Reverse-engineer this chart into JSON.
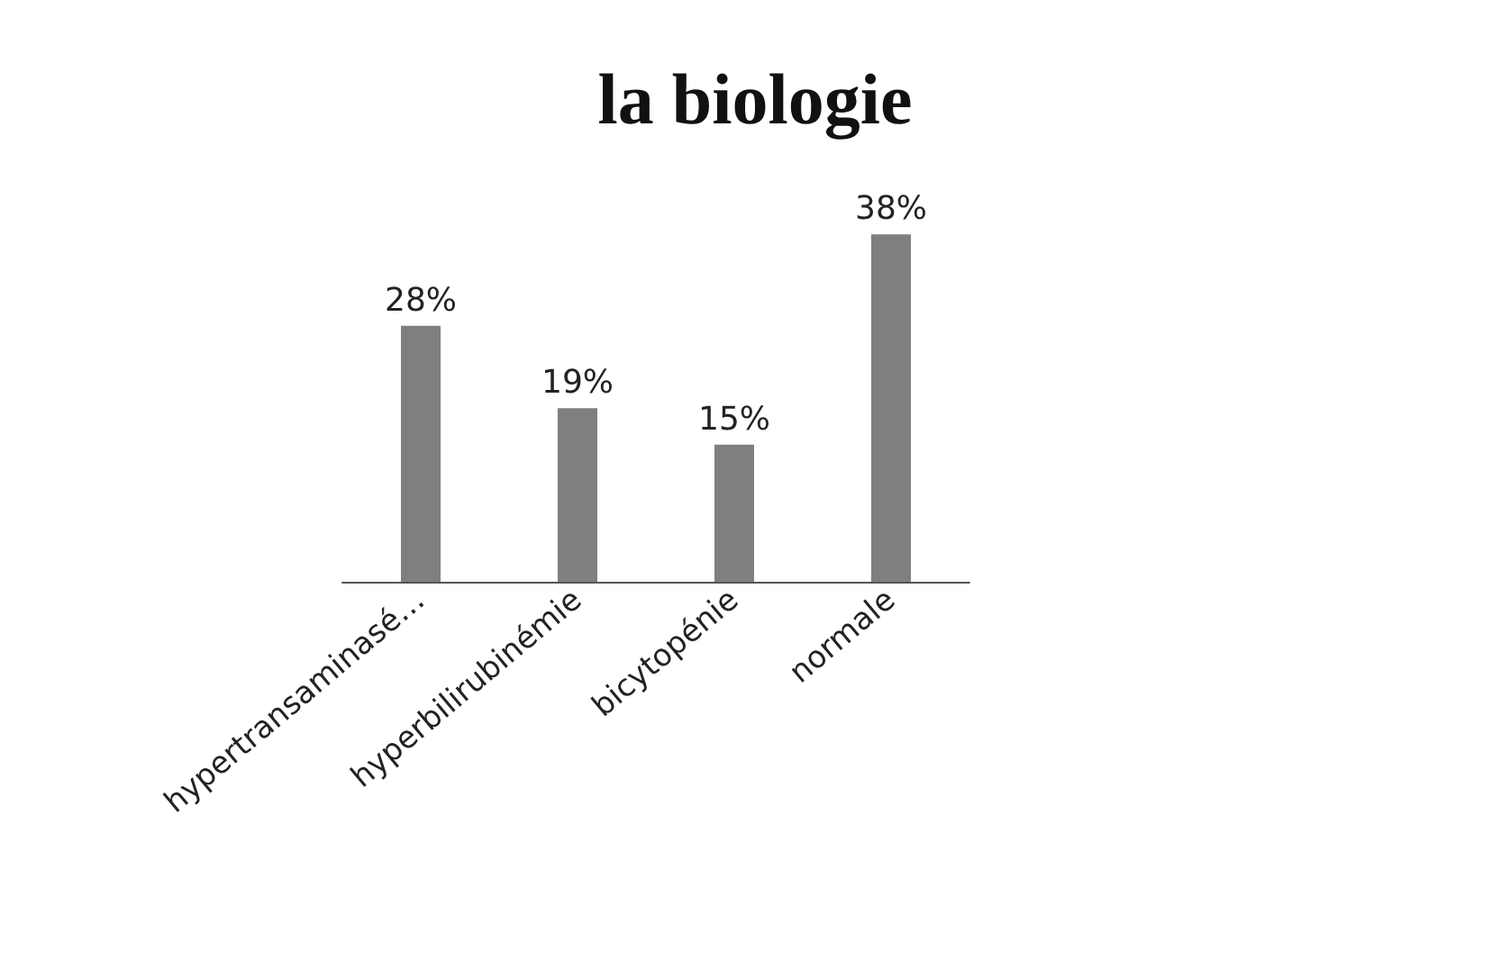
{
  "chart_data": {
    "type": "bar",
    "title": "la biologie",
    "categories": [
      "hypertransaminasé…",
      "hyperbilirubinémie",
      "bicytopénie",
      "normale"
    ],
    "values": [
      28,
      19,
      15,
      38
    ],
    "value_labels": [
      "28%",
      "19%",
      "15%",
      "38%"
    ],
    "color": "#7f7f7f",
    "tick_labels": "x",
    "grid": false
  }
}
